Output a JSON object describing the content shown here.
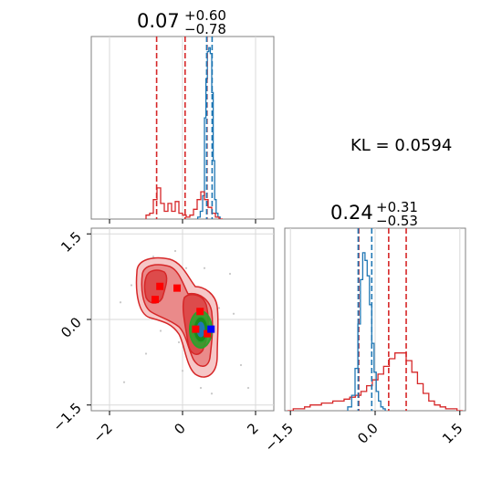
{
  "chart_data": {
    "type": "corner",
    "annotation": "KL = 0.0594",
    "colors": {
      "red": "#d62728",
      "blue": "#1f77b4",
      "green": "#2ca02c",
      "red_marker": "#ff0000",
      "blue_marker": "#0000ff"
    },
    "grid": true,
    "panels": [
      {
        "name": "param1-marginal",
        "type": "histogram",
        "title": {
          "value": "0.07",
          "plus": "+0.60",
          "minus": "−0.78"
        },
        "xlim": [
          -2.5,
          2.5
        ],
        "quantiles_red": [
          -0.71,
          0.07,
          0.67
        ],
        "quantiles_blue": [
          0.66,
          0.81
        ],
        "red_hist": {
          "x": [
            -0.95,
            -0.85,
            -0.75,
            -0.65,
            -0.55,
            -0.45,
            -0.35,
            -0.25,
            -0.15,
            -0.05,
            0.05,
            0.15,
            0.25,
            0.35,
            0.45,
            0.55,
            0.65,
            0.75,
            0.85,
            0.95,
            1.05
          ],
          "y": [
            0.02,
            0.03,
            0.1,
            0.16,
            0.08,
            0.04,
            0.08,
            0.04,
            0.09,
            0.03,
            0.02,
            0.01,
            0.02,
            0.05,
            0.1,
            0.14,
            0.1,
            0.06,
            0.03,
            0.01,
            0.0
          ]
        },
        "blue_hist": {
          "x": [
            0.45,
            0.52,
            0.58,
            0.62,
            0.66,
            0.7,
            0.74,
            0.78,
            0.82,
            0.86,
            0.9,
            0.94,
            1.0
          ],
          "y": [
            0.01,
            0.04,
            0.12,
            0.52,
            0.72,
            0.86,
            0.88,
            0.85,
            0.65,
            0.3,
            0.1,
            0.03,
            0.01
          ]
        }
      },
      {
        "name": "joint",
        "type": "2d-density",
        "xlim": [
          -2.5,
          2.5
        ],
        "ylim": [
          -1.6,
          1.6
        ],
        "xticks": [
          "−2",
          "0",
          "2"
        ],
        "yticks": [
          "−1.5",
          "0.0",
          "1.5"
        ],
        "red_markers": [
          [
            -0.75,
            0.35
          ],
          [
            -0.62,
            0.58
          ],
          [
            -0.15,
            0.55
          ],
          [
            0.48,
            0.14
          ],
          [
            0.36,
            -0.17
          ],
          [
            0.68,
            -0.25
          ]
        ],
        "blue_marker": [
          0.78,
          -0.17
        ],
        "scatter_points": [
          [
            -1.7,
            0.3
          ],
          [
            -1.2,
            0.8
          ],
          [
            -0.8,
            1.1
          ],
          [
            0.6,
            0.9
          ],
          [
            -0.3,
            0.1
          ],
          [
            0.2,
            -0.5
          ],
          [
            0.4,
            -0.9
          ],
          [
            0.9,
            -0.6
          ],
          [
            1.3,
            0.8
          ],
          [
            -1.6,
            -1.1
          ],
          [
            1.6,
            -0.8
          ],
          [
            0.5,
            -1.2
          ],
          [
            -0.6,
            -0.2
          ],
          [
            0.1,
            0.9
          ],
          [
            -0.1,
            -0.4
          ],
          [
            1.0,
            0.2
          ],
          [
            0.3,
            0.5
          ],
          [
            -0.2,
            1.2
          ],
          [
            0.8,
            -1.3
          ],
          [
            -1.0,
            -0.6
          ],
          [
            1.8,
            -1.2
          ],
          [
            -0.4,
            0.9
          ],
          [
            0.6,
            -0.7
          ],
          [
            0.0,
            -0.9
          ],
          [
            1.4,
            0.1
          ],
          [
            -1.4,
            0.6
          ]
        ]
      },
      {
        "name": "param2-marginal",
        "type": "histogram",
        "title": {
          "value": "0.24",
          "plus": "+0.31",
          "minus": "−0.53"
        },
        "xlim": [
          -1.6,
          1.6
        ],
        "xticks": [
          "−1.5",
          "0.0",
          "1.5"
        ],
        "quantiles_red": [
          -0.29,
          0.24,
          0.55
        ],
        "quantiles_blue": [
          -0.3,
          -0.06
        ],
        "red_hist": {
          "x": [
            -1.5,
            -1.4,
            -1.3,
            -1.2,
            -1.1,
            -1.0,
            -0.9,
            -0.8,
            -0.7,
            -0.6,
            -0.5,
            -0.4,
            -0.3,
            -0.2,
            -0.1,
            0.0,
            0.1,
            0.2,
            0.3,
            0.4,
            0.5,
            0.6,
            0.7,
            0.8,
            0.9,
            1.0,
            1.1,
            1.2,
            1.3,
            1.4,
            1.5
          ],
          "y": [
            0.0,
            0.01,
            0.01,
            0.02,
            0.03,
            0.03,
            0.04,
            0.04,
            0.05,
            0.05,
            0.06,
            0.07,
            0.08,
            0.1,
            0.13,
            0.16,
            0.19,
            0.23,
            0.27,
            0.3,
            0.3,
            0.26,
            0.2,
            0.14,
            0.09,
            0.05,
            0.03,
            0.02,
            0.01,
            0.01,
            0.0
          ]
        },
        "blue_hist": {
          "x": [
            -0.45,
            -0.38,
            -0.33,
            -0.28,
            -0.24,
            -0.2,
            -0.16,
            -0.12,
            -0.08,
            -0.04,
            0.0,
            0.04,
            0.08,
            0.12,
            0.16
          ],
          "y": [
            0.02,
            0.08,
            0.22,
            0.45,
            0.68,
            0.82,
            0.78,
            0.7,
            0.55,
            0.35,
            0.2,
            0.1,
            0.05,
            0.02,
            0.01
          ]
        }
      }
    ]
  }
}
